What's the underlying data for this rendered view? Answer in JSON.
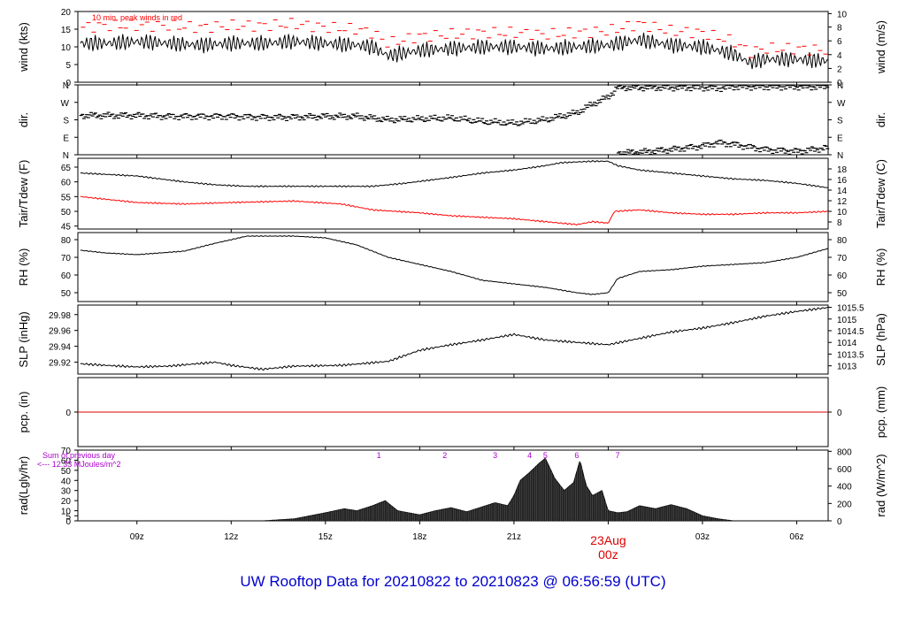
{
  "page": {
    "title": "UW Rooftop Data for 20210822  to  20210823 @ 06:56:59  (UTC)",
    "title_color": "#0000cc"
  },
  "time_axis": {
    "range_hours": [
      7.12,
      31.0
    ],
    "ticks": [
      {
        "h": 9,
        "label": "09z"
      },
      {
        "h": 12,
        "label": "12z"
      },
      {
        "h": 15,
        "label": "15z"
      },
      {
        "h": 18,
        "label": "18z"
      },
      {
        "h": 21,
        "label": "21z"
      },
      {
        "h": 24,
        "label": "00z"
      },
      {
        "h": 27,
        "label": "03z"
      },
      {
        "h": 30,
        "label": "06z"
      }
    ],
    "day_marker": {
      "h": 24,
      "date": "23Aug",
      "hour": "00z",
      "color": "#dd0000"
    }
  },
  "chart_data": [
    {
      "id": "wind",
      "type": "line",
      "ylabel": "wind (kts)",
      "ylabel_right": "wind (m/s)",
      "ylim": [
        0,
        20
      ],
      "yticks": [
        0,
        5,
        10,
        15,
        20
      ],
      "right_ticks": [
        {
          "v": 0,
          "label": "0"
        },
        {
          "v": 3.9,
          "label": "2"
        },
        {
          "v": 7.8,
          "label": "4"
        },
        {
          "v": 11.7,
          "label": "6"
        },
        {
          "v": 15.6,
          "label": "8"
        },
        {
          "v": 19.4,
          "label": "10"
        }
      ],
      "annotation": "10 min. peak winds in red",
      "series": [
        {
          "role": "mean",
          "color": "#000000",
          "x": [
            7.2,
            8.0,
            9.0,
            10.0,
            11.0,
            12.0,
            13.0,
            14.0,
            15.0,
            16.0,
            16.5,
            17.0,
            18.0,
            19.0,
            20.0,
            21.0,
            22.0,
            23.0,
            24.0,
            25.0,
            26.0,
            27.0,
            28.0,
            28.5,
            29.0,
            30.0,
            31.0
          ],
          "y": [
            11,
            11,
            11.5,
            11,
            10.5,
            11,
            11,
            11.5,
            11,
            10.5,
            10,
            7.5,
            9,
            9.5,
            10,
            10,
            9.5,
            10,
            10.5,
            12,
            10.5,
            10,
            8,
            5.5,
            6.5,
            6.5,
            6
          ]
        },
        {
          "role": "peak",
          "color": "#ff0000",
          "x": [
            7.2,
            8.0,
            9.0,
            10.0,
            11.0,
            12.0,
            13.0,
            14.0,
            15.0,
            16.0,
            16.5,
            17.0,
            18.0,
            19.0,
            20.0,
            21.0,
            22.0,
            23.0,
            24.0,
            25.0,
            26.0,
            27.0,
            28.0,
            28.5,
            29.0,
            30.0,
            31.0
          ],
          "y": [
            15.5,
            16,
            16,
            16,
            15.5,
            16,
            16,
            16.5,
            15.5,
            15,
            14,
            11,
            13,
            13.5,
            14,
            14,
            13.5,
            14,
            14.5,
            16.5,
            14.5,
            14,
            11.5,
            8.5,
            9.5,
            9.5,
            9
          ]
        }
      ]
    },
    {
      "id": "dir",
      "type": "scatter",
      "ylabel": "dir.",
      "ylabel_right": "dir.",
      "ylim": [
        0,
        4
      ],
      "ytick_labels": [
        "N",
        "E",
        "S",
        "W",
        "N"
      ],
      "series": [
        {
          "name": "",
          "color": "#000000",
          "x": [
            7.2,
            8,
            9,
            10,
            11,
            12,
            13,
            14,
            15,
            16,
            17,
            18,
            19,
            20,
            21,
            22,
            22.5,
            23,
            23.5,
            24,
            24.3,
            25,
            26,
            27,
            27.5,
            28,
            29,
            30,
            31
          ],
          "y": [
            2.25,
            2.25,
            2.25,
            2.2,
            2.2,
            2.2,
            2.15,
            2.15,
            2.2,
            2.2,
            2.0,
            2.05,
            2.1,
            1.9,
            1.8,
            2.0,
            2.2,
            2.4,
            2.9,
            3.3,
            3.85,
            3.85,
            3.85,
            3.85,
            3.8,
            3.9,
            3.9,
            3.9,
            3.9
          ]
        },
        {
          "name": "",
          "color": "#000000",
          "x": [
            24.3,
            25,
            26,
            27,
            27.5,
            28,
            29,
            30,
            31
          ],
          "y": [
            0.1,
            0.15,
            0.3,
            0.5,
            0.7,
            0.6,
            0.3,
            0.2,
            0.4
          ]
        }
      ]
    },
    {
      "id": "temp",
      "type": "line",
      "ylabel": "Tair/Tdew (F)",
      "ylabel_right": "Tair/Tdew (C)",
      "ylim": [
        44,
        68
      ],
      "yticks": [
        45,
        50,
        55,
        60,
        65
      ],
      "right_ticks": [
        {
          "v": 46.4,
          "label": "8"
        },
        {
          "v": 50.0,
          "label": "10"
        },
        {
          "v": 53.6,
          "label": "12"
        },
        {
          "v": 57.2,
          "label": "14"
        },
        {
          "v": 60.8,
          "label": "16"
        },
        {
          "v": 64.4,
          "label": "18"
        }
      ],
      "series": [
        {
          "role": "Tair",
          "color": "#000000",
          "x": [
            7.2,
            9,
            10.5,
            11.5,
            12.5,
            15,
            16.5,
            17.5,
            19,
            20,
            21,
            22,
            22.5,
            23.5,
            24,
            24.3,
            25,
            26,
            27,
            28,
            29,
            30,
            31
          ],
          "y": [
            63,
            62,
            60,
            59,
            58.5,
            58.5,
            58.5,
            59.5,
            61.5,
            63,
            64,
            65.5,
            66.5,
            67,
            67,
            65.5,
            64,
            63,
            62,
            61,
            60.5,
            59.5,
            58
          ]
        },
        {
          "role": "Tdew",
          "color": "#ff0000",
          "x": [
            7.2,
            9,
            10.5,
            12,
            14,
            15.5,
            16.5,
            18,
            19,
            20,
            21,
            22,
            23,
            23.5,
            24,
            24.2,
            25,
            26,
            27,
            28,
            29,
            30,
            31
          ],
          "y": [
            55,
            53,
            52.5,
            53,
            53.5,
            52.5,
            50.5,
            49.5,
            48.5,
            48,
            47.5,
            46.5,
            45.5,
            46.5,
            46,
            50,
            50.5,
            49.5,
            49,
            49,
            49.5,
            49.5,
            50
          ]
        }
      ]
    },
    {
      "id": "rh",
      "type": "line",
      "ylabel": "RH (%)",
      "ylabel_right": "RH (%)",
      "ylim": [
        45,
        84
      ],
      "yticks": [
        50,
        60,
        70,
        80
      ],
      "right_ticks": [
        {
          "v": 50,
          "label": "50"
        },
        {
          "v": 60,
          "label": "60"
        },
        {
          "v": 70,
          "label": "70"
        },
        {
          "v": 80,
          "label": "80"
        }
      ],
      "series": [
        {
          "name": "",
          "color": "#000000",
          "x": [
            7.2,
            8,
            9,
            10.5,
            11.5,
            12.5,
            14,
            15,
            16,
            17,
            18,
            19,
            20,
            21,
            22,
            23,
            23.5,
            24,
            24.3,
            25,
            26,
            27,
            28,
            29,
            30,
            31
          ],
          "y": [
            74,
            72.5,
            71.5,
            73.5,
            78,
            82,
            82,
            81,
            77,
            70,
            66,
            62,
            57,
            55,
            53,
            50,
            49,
            50,
            58,
            62,
            63,
            65,
            66,
            67,
            70,
            75
          ]
        }
      ]
    },
    {
      "id": "slp",
      "type": "line",
      "ylabel": "SLP (inHg)",
      "ylabel_right": "SLP (hPa)",
      "ylim": [
        29.905,
        29.992
      ],
      "yticks": [
        29.92,
        29.94,
        29.96,
        29.98
      ],
      "right_ticks": [
        {
          "v": 29.9154,
          "label": "1013"
        },
        {
          "v": 29.9302,
          "label": "1013.5"
        },
        {
          "v": 29.9449,
          "label": "1014"
        },
        {
          "v": 29.9597,
          "label": "1014.5"
        },
        {
          "v": 29.9744,
          "label": "1015"
        },
        {
          "v": 29.9892,
          "label": "1015.5"
        }
      ],
      "series": [
        {
          "name": "",
          "color": "#000000",
          "x": [
            7.2,
            8,
            9,
            10,
            11.5,
            12,
            13,
            14,
            15.5,
            17,
            18,
            19,
            20,
            21,
            22,
            23,
            24,
            25,
            26,
            27,
            28,
            29,
            30,
            31
          ],
          "y": [
            29.918,
            29.916,
            29.914,
            29.915,
            29.92,
            29.916,
            29.911,
            29.915,
            29.916,
            29.921,
            29.935,
            29.942,
            29.948,
            29.955,
            29.948,
            29.945,
            29.942,
            29.95,
            29.958,
            29.963,
            29.97,
            29.978,
            29.984,
            29.989
          ]
        }
      ]
    },
    {
      "id": "pcp",
      "type": "line",
      "ylabel": "pcp. (in)",
      "ylabel_right": "pcp. (mm)",
      "ylim": [
        -1,
        1
      ],
      "yticks": [
        0
      ],
      "right_ticks": [
        {
          "v": 0,
          "label": "0"
        }
      ],
      "series": [
        {
          "name": "",
          "color": "#dd0000",
          "x": [
            7.12,
            31.0
          ],
          "y": [
            0,
            0
          ]
        }
      ]
    },
    {
      "id": "rad",
      "type": "area",
      "ylabel": "rad(Lgly/hr)",
      "ylabel_right": "rad (W/m^2)",
      "ylim": [
        0,
        70
      ],
      "yticks": [
        0,
        5,
        10,
        20,
        30,
        40,
        50,
        60,
        70
      ],
      "right_ticks": [
        {
          "v": 0,
          "label": "0"
        },
        {
          "v": 17.2,
          "label": "200"
        },
        {
          "v": 34.4,
          "label": "400"
        },
        {
          "v": 51.6,
          "label": "600"
        },
        {
          "v": 68.8,
          "label": "800"
        }
      ],
      "note_lines": [
        "Sum of previous day",
        "<--- 12.33 MJoules/m^2"
      ],
      "note_color": "#aa00cc",
      "markers": [
        {
          "h": 16.7,
          "label": "1"
        },
        {
          "h": 18.8,
          "label": "2"
        },
        {
          "h": 20.4,
          "label": "3"
        },
        {
          "h": 21.5,
          "label": "4"
        },
        {
          "h": 22.0,
          "label": "5"
        },
        {
          "h": 23.0,
          "label": "6"
        },
        {
          "h": 24.3,
          "label": "7"
        }
      ],
      "series": [
        {
          "name": "",
          "color": "#000000",
          "x": [
            13.0,
            14.0,
            15.0,
            15.6,
            16.0,
            16.5,
            16.9,
            17.3,
            18.0,
            18.5,
            19.0,
            19.5,
            20.0,
            20.4,
            20.8,
            21.0,
            21.2,
            21.5,
            21.8,
            22.0,
            22.3,
            22.6,
            22.9,
            23.1,
            23.3,
            23.5,
            23.8,
            24.0,
            24.3,
            24.6,
            25.0,
            25.5,
            26.0,
            26.5,
            27.0,
            27.5,
            28.0
          ],
          "y": [
            0,
            2,
            8,
            12,
            10,
            15,
            20,
            10,
            6,
            10,
            13,
            9,
            14,
            18,
            15,
            25,
            40,
            48,
            57,
            62,
            42,
            30,
            38,
            60,
            35,
            25,
            30,
            10,
            8,
            9,
            15,
            12,
            16,
            12,
            5,
            2,
            0
          ]
        }
      ]
    }
  ]
}
